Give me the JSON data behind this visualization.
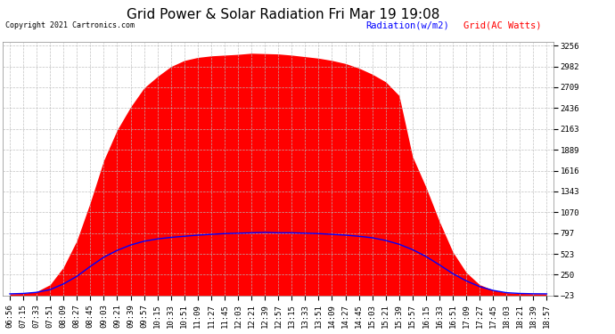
{
  "title": "Grid Power & Solar Radiation Fri Mar 19 19:08",
  "copyright": "Copyright 2021 Cartronics.com",
  "legend_radiation": "Radiation(w/m2)",
  "legend_grid": "Grid(AC Watts)",
  "ymin": -23.0,
  "ymax": 3255.5,
  "yticks": [
    3255.5,
    2982.3,
    2709.1,
    2435.9,
    2162.7,
    1889.4,
    1616.2,
    1343.0,
    1069.8,
    796.6,
    523.4,
    250.2,
    -23.0
  ],
  "background_color": "#ffffff",
  "grid_color": "#bbbbbb",
  "radiation_color": "#0000ff",
  "grid_fill_color": "#ff0000",
  "title_fontsize": 11,
  "tick_fontsize": 6.5,
  "x_labels": [
    "06:56",
    "07:15",
    "07:33",
    "07:51",
    "08:09",
    "08:27",
    "08:45",
    "09:03",
    "09:21",
    "09:39",
    "09:57",
    "10:15",
    "10:33",
    "10:51",
    "11:09",
    "11:27",
    "11:45",
    "12:03",
    "12:21",
    "12:39",
    "12:57",
    "13:15",
    "13:33",
    "13:51",
    "14:09",
    "14:27",
    "14:45",
    "15:03",
    "15:21",
    "15:39",
    "15:57",
    "16:15",
    "16:33",
    "16:51",
    "17:09",
    "17:27",
    "17:45",
    "18:03",
    "18:21",
    "18:39",
    "18:57"
  ],
  "grid_ac": [
    0,
    5,
    30,
    120,
    350,
    700,
    1200,
    1750,
    2150,
    2450,
    2700,
    2850,
    2980,
    3060,
    3100,
    3120,
    3130,
    3140,
    3155,
    3150,
    3145,
    3130,
    3110,
    3090,
    3060,
    3020,
    2960,
    2880,
    2780,
    2600,
    1800,
    1400,
    950,
    550,
    280,
    120,
    50,
    15,
    5,
    1,
    0
  ],
  "radiation": [
    0,
    5,
    20,
    55,
    130,
    230,
    360,
    480,
    570,
    640,
    690,
    720,
    740,
    755,
    770,
    780,
    790,
    795,
    800,
    805,
    800,
    800,
    795,
    790,
    780,
    770,
    755,
    735,
    700,
    650,
    580,
    490,
    380,
    265,
    170,
    95,
    45,
    15,
    5,
    1,
    0
  ]
}
